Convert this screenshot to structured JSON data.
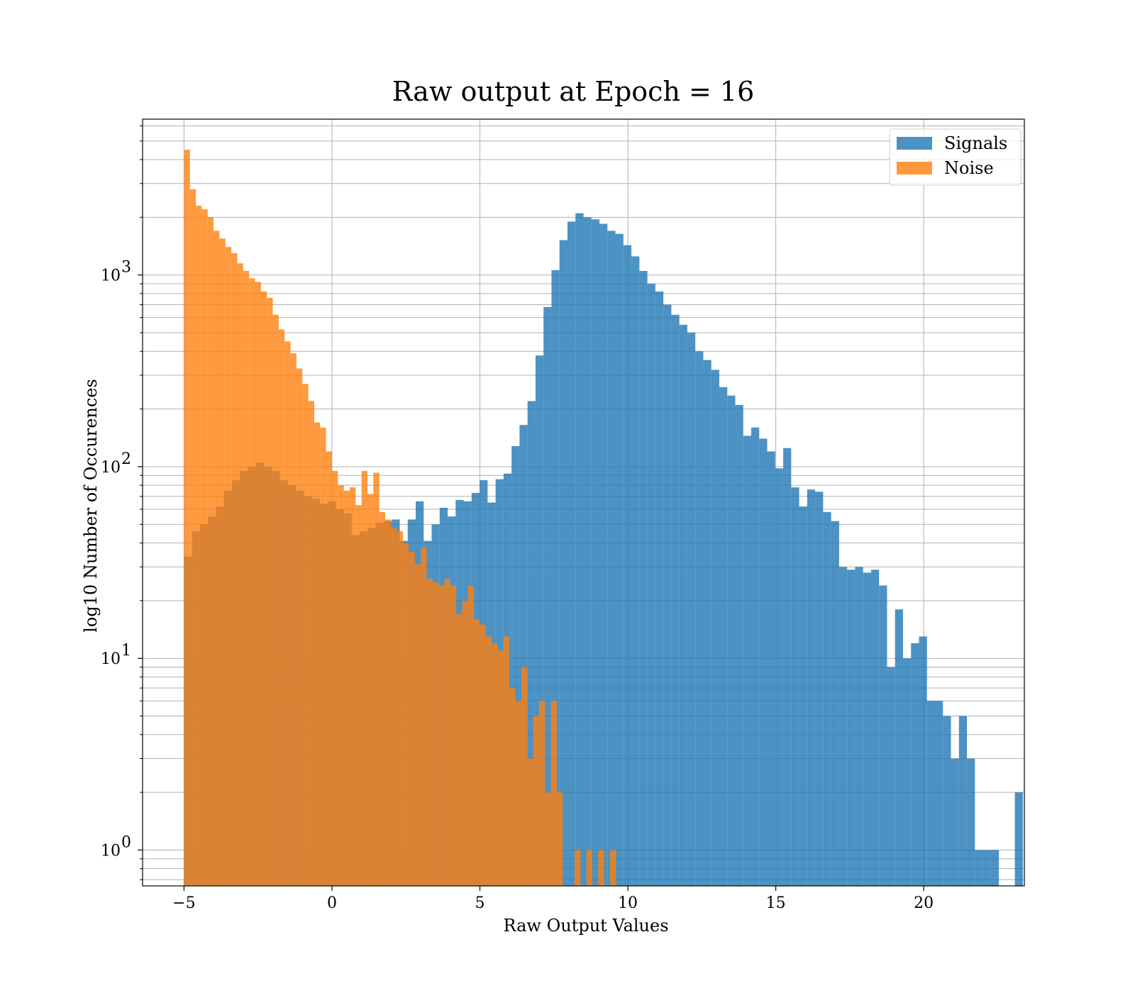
{
  "chart_data": {
    "type": "histogram",
    "title": "Raw output at Epoch = 16",
    "xlabel": "Raw Output Values",
    "ylabel": "log10 Number of Occurences",
    "xlim": [
      -6.4,
      23.4
    ],
    "ylim": [
      0.65,
      6500
    ],
    "yscale": "log",
    "grid": true,
    "legend_position": "top-right",
    "x_ticks": [
      -5,
      0,
      5,
      10,
      15,
      20
    ],
    "x_tick_labels": [
      "−5",
      "0",
      "5",
      "10",
      "15",
      "20"
    ],
    "y_ticks": [
      1,
      10,
      100,
      1000
    ],
    "y_tick_labels": [
      "10",
      "10",
      "10",
      "10"
    ],
    "y_tick_exponents": [
      "0",
      "1",
      "2",
      "3"
    ],
    "series": [
      {
        "name": "Signals",
        "color": "#1f77b4",
        "opacity": 0.8,
        "bin_start": -5.0,
        "bin_width": 0.27,
        "counts": [
          34,
          46,
          50,
          55,
          62,
          75,
          85,
          95,
          100,
          105,
          100,
          95,
          85,
          80,
          75,
          70,
          68,
          64,
          66,
          60,
          57,
          44,
          46,
          48,
          51,
          52,
          53,
          41,
          53,
          66,
          41,
          50,
          61,
          55,
          67,
          66,
          73,
          85,
          65,
          86,
          92,
          128,
          165,
          220,
          380,
          680,
          1060,
          1520,
          1900,
          2100,
          2000,
          1950,
          1850,
          1700,
          1640,
          1430,
          1250,
          1050,
          900,
          820,
          700,
          620,
          550,
          500,
          400,
          360,
          320,
          260,
          235,
          210,
          145,
          160,
          140,
          120,
          98,
          125,
          78,
          62,
          76,
          74,
          58,
          52,
          30,
          29,
          30,
          28,
          29,
          24,
          9,
          18,
          10,
          12,
          13,
          6,
          6,
          5,
          3,
          5,
          3,
          1,
          1,
          1,
          0,
          0,
          2
        ]
      },
      {
        "name": "Noise",
        "color": "#ff7f0e",
        "opacity": 0.8,
        "bin_start": -5.0,
        "bin_width": 0.2,
        "counts": [
          4500,
          2800,
          2300,
          2200,
          2000,
          1700,
          1550,
          1400,
          1300,
          1150,
          1050,
          960,
          920,
          820,
          760,
          620,
          520,
          450,
          390,
          325,
          270,
          220,
          170,
          160,
          120,
          95,
          80,
          75,
          78,
          63,
          95,
          72,
          93,
          58,
          53,
          48,
          46,
          40,
          36,
          31,
          38,
          26,
          25,
          24,
          26,
          24,
          17,
          20,
          24,
          16,
          15,
          13,
          12,
          11,
          13,
          7,
          6,
          9,
          3,
          5,
          6,
          2,
          6,
          2,
          0,
          0,
          1,
          0,
          1,
          0,
          1,
          0,
          1
        ]
      }
    ]
  }
}
